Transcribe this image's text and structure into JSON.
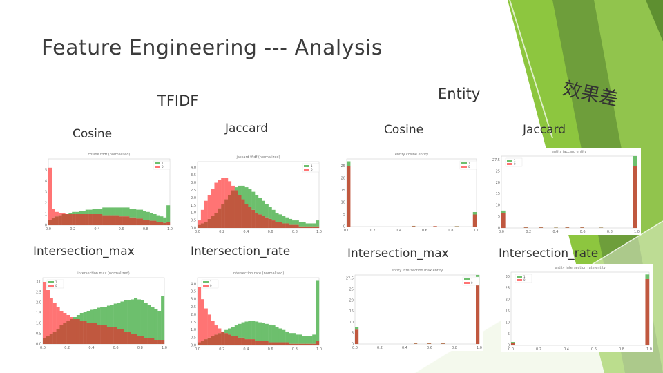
{
  "slide": {
    "title": "Feature Engineering --- Analysis",
    "group_tfidf": "TFIDF",
    "group_entity": "Entity",
    "annotation": "效果差",
    "labels": {
      "tfidf_cosine": "Cosine",
      "tfidf_jaccard": "Jaccard",
      "entity_cosine": "Cosine",
      "entity_jaccard": "Jaccard",
      "tfidf_inter_max": "Intersection_max",
      "tfidf_inter_rate": "Intersection_rate",
      "entity_inter_max": "Intersection_max",
      "entity_inter_rate": "Intersection_rate"
    }
  },
  "colors": {
    "green": "#6dbf6d",
    "red": "#ff7474",
    "overlap": "#c0583f",
    "accent_green": "#8dc63f"
  },
  "chart_data": [
    {
      "id": "tfidf_cosine",
      "type": "bar",
      "title": "cosine tfidf (normalized)",
      "legend": [
        "1",
        "0"
      ],
      "xticks": [
        "0.0",
        "0.2",
        "0.4",
        "0.6",
        "0.8",
        "1.0"
      ],
      "yticks": [
        "0",
        "1",
        "2",
        "3",
        "4",
        "5"
      ],
      "ylim": [
        0,
        6
      ],
      "series": [
        {
          "name": "1",
          "values": [
            0.5,
            0.7,
            0.8,
            0.9,
            1.0,
            1.0,
            1.1,
            1.2,
            1.2,
            1.3,
            1.3,
            1.4,
            1.4,
            1.5,
            1.5,
            1.5,
            1.6,
            1.6,
            1.6,
            1.6,
            1.6,
            1.6,
            1.6,
            1.6,
            1.5,
            1.5,
            1.4,
            1.4,
            1.3,
            1.2,
            1.1,
            1.0,
            0.9,
            0.8,
            0.7,
            1.8
          ]
        },
        {
          "name": "0",
          "values": [
            5.2,
            1.5,
            1.2,
            1.1,
            1.1,
            1.0,
            1.0,
            1.0,
            1.0,
            1.0,
            1.0,
            1.0,
            1.0,
            1.0,
            1.0,
            1.0,
            0.9,
            0.9,
            0.9,
            0.9,
            0.9,
            0.8,
            0.8,
            0.8,
            0.7,
            0.7,
            0.6,
            0.6,
            0.5,
            0.5,
            0.4,
            0.4,
            0.3,
            0.3,
            0.2,
            0.3
          ]
        }
      ]
    },
    {
      "id": "tfidf_jaccard",
      "type": "bar",
      "title": "jaccard tfidf (normalized)",
      "legend": [
        "1",
        "0"
      ],
      "xticks": [
        "0.0",
        "0.2",
        "0.4",
        "0.6",
        "0.8",
        "1.0"
      ],
      "yticks": [
        "0.0",
        "0.5",
        "1.0",
        "1.5",
        "2.0",
        "2.5",
        "3.0",
        "3.5",
        "4.0"
      ],
      "ylim": [
        0,
        4.4
      ],
      "series": [
        {
          "name": "1",
          "values": [
            0.2,
            0.3,
            0.4,
            0.6,
            0.8,
            1.0,
            1.3,
            1.6,
            1.9,
            2.2,
            2.5,
            2.7,
            2.8,
            2.8,
            2.7,
            2.6,
            2.4,
            2.2,
            2.0,
            1.8,
            1.6,
            1.4,
            1.2,
            1.0,
            0.9,
            0.8,
            0.7,
            0.6,
            0.5,
            0.5,
            0.4,
            0.4,
            0.3,
            0.3,
            0.3,
            0.5
          ]
        },
        {
          "name": "0",
          "values": [
            0.5,
            1.2,
            1.8,
            2.2,
            2.6,
            3.0,
            3.2,
            3.3,
            3.3,
            3.1,
            2.8,
            2.5,
            2.2,
            1.9,
            1.6,
            1.4,
            1.2,
            1.0,
            0.9,
            0.8,
            0.7,
            0.6,
            0.5,
            0.4,
            0.4,
            0.3,
            0.3,
            0.2,
            0.2,
            0.2,
            0.1,
            0.1,
            0.1,
            0.1,
            0.1,
            0.1
          ]
        }
      ]
    },
    {
      "id": "entity_cosine",
      "type": "bar",
      "title": "entity cosine entity",
      "legend": [
        "1",
        "0"
      ],
      "xticks": [
        "0.0",
        "0.2",
        "0.4",
        "0.6",
        "0.8",
        "1.0"
      ],
      "yticks": [
        "0",
        "5",
        "10",
        "15",
        "20",
        "25"
      ],
      "ylim": [
        0,
        28
      ],
      "series": [
        {
          "name": "1",
          "values": [
            27,
            0,
            0,
            0,
            0,
            0,
            0,
            0,
            0,
            0,
            0,
            0,
            0,
            0,
            0,
            0,
            0,
            0,
            0.3,
            0,
            0,
            0,
            0,
            0,
            0.2,
            0,
            0,
            0,
            0,
            0,
            0.2,
            0,
            0,
            0,
            0,
            6
          ]
        },
        {
          "name": "0",
          "values": [
            25,
            0,
            0,
            0,
            0,
            0,
            0,
            0,
            0,
            0,
            0,
            0,
            0,
            0,
            0,
            0,
            0,
            0,
            0.2,
            0,
            0,
            0,
            0,
            0,
            0.2,
            0,
            0,
            0,
            0,
            0,
            0.1,
            0,
            0,
            0,
            0,
            5
          ]
        }
      ]
    },
    {
      "id": "entity_jaccard",
      "type": "bar",
      "title": "entity jaccard entity",
      "legend": [
        "1",
        "0"
      ],
      "xticks": [
        "0.0",
        "0.2",
        "0.4",
        "0.6",
        "0.8",
        "1.0"
      ],
      "yticks": [
        "0",
        "5",
        "10",
        "15",
        "20",
        "25",
        "27.5"
      ],
      "ylim": [
        0,
        29
      ],
      "series": [
        {
          "name": "1",
          "values": [
            7,
            0,
            0,
            0,
            0,
            0,
            0.3,
            0,
            0,
            0,
            0.3,
            0,
            0,
            0,
            0.2,
            0,
            0,
            0.3,
            0,
            0,
            0,
            0.3,
            0,
            0,
            0,
            0,
            0.2,
            0,
            0,
            0,
            0,
            0,
            0,
            0,
            0,
            29
          ]
        },
        {
          "name": "0",
          "values": [
            6,
            0,
            0,
            0,
            0,
            0,
            0.2,
            0,
            0,
            0,
            0.2,
            0,
            0,
            0,
            0.1,
            0,
            0,
            0.2,
            0,
            0,
            0,
            0.2,
            0,
            0,
            0,
            0,
            0.1,
            0,
            0,
            0,
            0,
            0,
            0,
            0,
            0,
            25
          ]
        }
      ]
    },
    {
      "id": "tfidf_inter_max",
      "type": "bar",
      "title": "intersection max (normalized)",
      "legend": [
        "1",
        "0"
      ],
      "xticks": [
        "0.0",
        "0.2",
        "0.4",
        "0.6",
        "0.8",
        "1.0"
      ],
      "yticks": [
        "0.0",
        "0.5",
        "1.0",
        "1.5",
        "2.0",
        "2.5",
        "3.0"
      ],
      "ylim": [
        0,
        3.2
      ],
      "series": [
        {
          "name": "1",
          "values": [
            0.3,
            0.4,
            0.5,
            0.6,
            0.7,
            0.9,
            1.0,
            1.1,
            1.2,
            1.3,
            1.4,
            1.5,
            1.55,
            1.6,
            1.65,
            1.7,
            1.75,
            1.8,
            1.8,
            1.85,
            1.9,
            1.95,
            2.0,
            2.05,
            2.1,
            2.1,
            2.15,
            2.2,
            2.15,
            2.1,
            2.0,
            1.9,
            1.8,
            1.7,
            1.6,
            2.3
          ]
        },
        {
          "name": "0",
          "values": [
            3.0,
            2.6,
            2.2,
            2.0,
            1.8,
            1.6,
            1.5,
            1.4,
            1.3,
            1.2,
            1.2,
            1.1,
            1.1,
            1.0,
            1.0,
            1.0,
            0.9,
            0.9,
            0.9,
            0.8,
            0.8,
            0.8,
            0.7,
            0.7,
            0.6,
            0.6,
            0.5,
            0.5,
            0.4,
            0.4,
            0.3,
            0.3,
            0.3,
            0.2,
            0.2,
            0.2
          ]
        }
      ]
    },
    {
      "id": "tfidf_inter_rate",
      "type": "bar",
      "title": "intersection rate (normalized)",
      "legend": [
        "1",
        "0"
      ],
      "xticks": [
        "0.0",
        "0.2",
        "0.4",
        "0.6",
        "0.8",
        "1.0"
      ],
      "yticks": [
        "0.0",
        "0.5",
        "1.0",
        "1.5",
        "2.0",
        "2.5",
        "3.0",
        "3.5",
        "4.0"
      ],
      "ylim": [
        0,
        4.4
      ],
      "series": [
        {
          "name": "1",
          "values": [
            0.2,
            0.3,
            0.4,
            0.5,
            0.6,
            0.7,
            0.8,
            0.9,
            1.0,
            1.1,
            1.2,
            1.3,
            1.4,
            1.5,
            1.55,
            1.6,
            1.6,
            1.55,
            1.5,
            1.45,
            1.4,
            1.35,
            1.3,
            1.2,
            1.1,
            1.0,
            0.9,
            0.8,
            0.8,
            0.7,
            0.7,
            0.6,
            0.6,
            0.6,
            0.7,
            4.2
          ]
        },
        {
          "name": "0",
          "values": [
            3.8,
            3.0,
            2.4,
            2.0,
            1.6,
            1.3,
            1.1,
            0.9,
            0.8,
            0.7,
            0.6,
            0.6,
            0.5,
            0.5,
            0.4,
            0.4,
            0.4,
            0.3,
            0.3,
            0.3,
            0.3,
            0.2,
            0.2,
            0.2,
            0.2,
            0.2,
            0.2,
            0.1,
            0.1,
            0.1,
            0.1,
            0.1,
            0.1,
            0.1,
            0.1,
            0.3
          ]
        }
      ]
    },
    {
      "id": "entity_inter_max",
      "type": "bar",
      "title": "entity intersection max entity",
      "legend": [
        "1",
        "0"
      ],
      "xticks": [
        "0.0",
        "0.2",
        "0.4",
        "0.6",
        "0.8",
        "1.0"
      ],
      "yticks": [
        "0",
        "5",
        "10",
        "15",
        "20",
        "25",
        "27.5"
      ],
      "ylim": [
        0,
        29
      ],
      "series": [
        {
          "name": "1",
          "values": [
            7,
            0,
            0,
            0,
            0,
            0,
            0,
            0,
            0,
            0,
            0,
            0,
            0,
            0,
            0,
            0,
            0,
            0.3,
            0,
            0,
            0,
            0.3,
            0,
            0,
            0,
            0.3,
            0,
            0,
            0,
            0,
            0,
            0,
            0,
            0,
            0,
            29
          ]
        },
        {
          "name": "0",
          "values": [
            6,
            0,
            0,
            0,
            0,
            0,
            0,
            0,
            0,
            0,
            0,
            0,
            0,
            0,
            0,
            0,
            0,
            0.2,
            0,
            0,
            0,
            0.2,
            0,
            0,
            0,
            0.2,
            0,
            0,
            0,
            0,
            0,
            0,
            0,
            0,
            0,
            25
          ]
        }
      ]
    },
    {
      "id": "entity_inter_rate",
      "type": "bar",
      "title": "entity intersection rate entity",
      "legend": [
        "1",
        "0"
      ],
      "xticks": [
        "0.0",
        "0.2",
        "0.4",
        "0.6",
        "0.8",
        "1.0"
      ],
      "yticks": [
        "0",
        "5",
        "10",
        "15",
        "20",
        "25",
        "30"
      ],
      "ylim": [
        0,
        32
      ],
      "series": [
        {
          "name": "1",
          "values": [
            1.5,
            0,
            0,
            0,
            0,
            0,
            0,
            0,
            0,
            0,
            0,
            0,
            0,
            0,
            0,
            0,
            0,
            0,
            0,
            0,
            0,
            0,
            0,
            0,
            0,
            0,
            0,
            0,
            0,
            0,
            0,
            0,
            0,
            0,
            0,
            31
          ]
        },
        {
          "name": "0",
          "values": [
            1.2,
            0,
            0,
            0,
            0,
            0,
            0,
            0,
            0,
            0,
            0,
            0,
            0,
            0,
            0,
            0,
            0,
            0,
            0,
            0,
            0,
            0,
            0,
            0,
            0,
            0,
            0,
            0,
            0,
            0,
            0,
            0,
            0,
            0,
            0,
            29
          ]
        }
      ]
    }
  ]
}
